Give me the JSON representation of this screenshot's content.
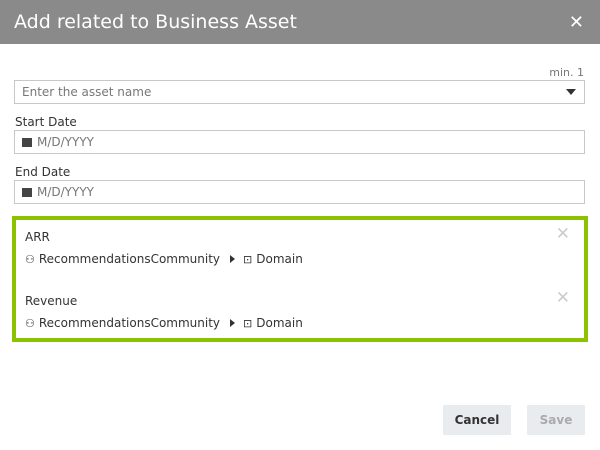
{
  "dialog": {
    "title": "Add related to Business Asset",
    "close_icon": "close-icon"
  },
  "asset": {
    "min_label": "min. 1",
    "placeholder": "Enter the asset name"
  },
  "start_date": {
    "label": "Start Date",
    "placeholder": "M/D/YYYY"
  },
  "end_date": {
    "label": "End Date",
    "placeholder": "M/D/YYYY"
  },
  "selected": [
    {
      "name": "ARR",
      "community": "RecommendationsCommunity",
      "domain": "Domain"
    },
    {
      "name": "Revenue",
      "community": "RecommendationsCommunity",
      "domain": "Domain"
    }
  ],
  "footer": {
    "cancel": "Cancel",
    "save": "Save"
  },
  "colors": {
    "header": "#8a8a8a",
    "accent": "#8cc200"
  }
}
